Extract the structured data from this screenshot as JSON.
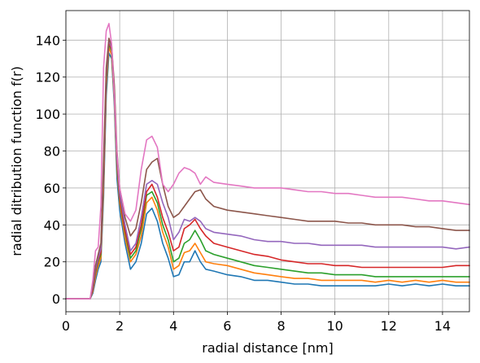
{
  "chart_data": {
    "type": "line",
    "title": "",
    "xlabel": "radial distance [nm]",
    "ylabel": "radial ditribution function f(r)",
    "xlim": [
      0,
      15
    ],
    "ylim": [
      -7,
      156
    ],
    "xticks": [
      0,
      2,
      4,
      6,
      8,
      10,
      12,
      14
    ],
    "yticks": [
      0,
      20,
      40,
      60,
      80,
      100,
      120,
      140
    ],
    "grid": true,
    "legend": "none",
    "series": [
      {
        "color": "#1f77b4",
        "x": [
          0,
          0.9,
          1.0,
          1.1,
          1.2,
          1.3,
          1.4,
          1.5,
          1.6,
          1.7,
          1.8,
          1.9,
          2.0,
          2.2,
          2.4,
          2.6,
          2.8,
          3.0,
          3.2,
          3.4,
          3.6,
          3.8,
          4.0,
          4.2,
          4.4,
          4.6,
          4.8,
          5.0,
          5.2,
          5.5,
          6.0,
          6.5,
          7.0,
          7.5,
          8.0,
          8.5,
          9.0,
          9.5,
          10.0,
          10.5,
          11.0,
          11.5,
          12.0,
          12.5,
          13.0,
          13.5,
          14.0,
          14.5,
          15.0
        ],
        "y": [
          0,
          0,
          3,
          10,
          16,
          20,
          55,
          110,
          133,
          130,
          105,
          65,
          48,
          30,
          16,
          20,
          30,
          46,
          49,
          42,
          30,
          22,
          12,
          13,
          20,
          20,
          26,
          20,
          16,
          15,
          13,
          12,
          10,
          10,
          9,
          8,
          8,
          7,
          7,
          7,
          7,
          7,
          8,
          7,
          8,
          7,
          8,
          7,
          7
        ]
      },
      {
        "color": "#ff7f0e",
        "x": [
          0,
          0.9,
          1.0,
          1.1,
          1.2,
          1.3,
          1.4,
          1.5,
          1.6,
          1.7,
          1.8,
          1.9,
          2.0,
          2.2,
          2.4,
          2.6,
          2.8,
          3.0,
          3.2,
          3.4,
          3.6,
          3.8,
          4.0,
          4.2,
          4.4,
          4.6,
          4.8,
          5.0,
          5.2,
          5.5,
          6.0,
          6.5,
          7.0,
          7.5,
          8.0,
          8.5,
          9.0,
          9.5,
          10.0,
          10.5,
          11.0,
          11.5,
          12.0,
          12.5,
          13.0,
          13.5,
          14.0,
          14.5,
          15.0
        ],
        "y": [
          0,
          0,
          4,
          12,
          18,
          22,
          60,
          115,
          136,
          132,
          108,
          70,
          52,
          33,
          20,
          24,
          34,
          52,
          55,
          48,
          36,
          28,
          16,
          18,
          25,
          26,
          30,
          25,
          20,
          19,
          18,
          16,
          14,
          13,
          12,
          11,
          11,
          10,
          10,
          10,
          10,
          9,
          10,
          9,
          10,
          9,
          10,
          9,
          9
        ]
      },
      {
        "color": "#2ca02c",
        "x": [
          0,
          0.9,
          1.0,
          1.1,
          1.2,
          1.3,
          1.4,
          1.5,
          1.6,
          1.7,
          1.8,
          1.9,
          2.0,
          2.2,
          2.4,
          2.6,
          2.8,
          3.0,
          3.2,
          3.4,
          3.6,
          3.8,
          4.0,
          4.2,
          4.4,
          4.6,
          4.8,
          5.0,
          5.2,
          5.5,
          6.0,
          6.5,
          7.0,
          7.5,
          8.0,
          8.5,
          9.0,
          9.5,
          10.0,
          10.5,
          11.0,
          11.5,
          12.0,
          12.5,
          13.0,
          13.5,
          14.0,
          14.5,
          15.0
        ],
        "y": [
          0,
          0,
          5,
          14,
          20,
          24,
          65,
          118,
          138,
          134,
          110,
          72,
          54,
          36,
          22,
          26,
          38,
          56,
          58,
          52,
          40,
          32,
          20,
          22,
          30,
          32,
          37,
          32,
          26,
          24,
          22,
          20,
          18,
          17,
          16,
          15,
          14,
          14,
          13,
          13,
          13,
          12,
          12,
          12,
          12,
          12,
          12,
          12,
          12
        ]
      },
      {
        "color": "#d62728",
        "x": [
          0,
          0.9,
          1.0,
          1.1,
          1.2,
          1.3,
          1.4,
          1.5,
          1.6,
          1.7,
          1.8,
          1.9,
          2.0,
          2.2,
          2.4,
          2.6,
          2.8,
          3.0,
          3.2,
          3.4,
          3.6,
          3.8,
          4.0,
          4.2,
          4.4,
          4.6,
          4.8,
          5.0,
          5.2,
          5.5,
          6.0,
          6.5,
          7.0,
          7.5,
          8.0,
          8.5,
          9.0,
          9.5,
          10.0,
          10.5,
          11.0,
          11.5,
          12.0,
          12.5,
          13.0,
          13.5,
          14.0,
          14.5,
          15.0
        ],
        "y": [
          0,
          0,
          5,
          15,
          21,
          25,
          68,
          120,
          139,
          135,
          112,
          74,
          55,
          37,
          24,
          28,
          40,
          58,
          62,
          55,
          44,
          36,
          26,
          28,
          38,
          40,
          43,
          38,
          34,
          30,
          28,
          26,
          24,
          23,
          21,
          20,
          19,
          19,
          18,
          18,
          17,
          17,
          17,
          17,
          17,
          17,
          17,
          18,
          18
        ]
      },
      {
        "color": "#9467bd",
        "x": [
          0,
          0.9,
          1.0,
          1.1,
          1.2,
          1.3,
          1.4,
          1.5,
          1.6,
          1.7,
          1.8,
          1.9,
          2.0,
          2.2,
          2.4,
          2.6,
          2.8,
          3.0,
          3.2,
          3.4,
          3.6,
          3.8,
          4.0,
          4.2,
          4.4,
          4.6,
          4.8,
          5.0,
          5.2,
          5.5,
          6.0,
          6.5,
          7.0,
          7.5,
          8.0,
          8.5,
          9.0,
          9.5,
          10.0,
          10.5,
          11.0,
          11.5,
          12.0,
          12.5,
          13.0,
          13.5,
          14.0,
          14.5,
          15.0
        ],
        "y": [
          0,
          0,
          6,
          16,
          22,
          27,
          70,
          122,
          140,
          136,
          114,
          76,
          57,
          40,
          26,
          30,
          44,
          62,
          64,
          62,
          52,
          44,
          32,
          36,
          43,
          42,
          44,
          42,
          38,
          36,
          35,
          34,
          32,
          31,
          31,
          30,
          30,
          29,
          29,
          29,
          29,
          28,
          28,
          28,
          28,
          28,
          28,
          27,
          28
        ]
      },
      {
        "color": "#8c564b",
        "x": [
          0,
          0.9,
          1.0,
          1.1,
          1.2,
          1.3,
          1.4,
          1.5,
          1.6,
          1.7,
          1.8,
          1.9,
          2.0,
          2.2,
          2.4,
          2.6,
          2.8,
          3.0,
          3.2,
          3.4,
          3.6,
          3.8,
          4.0,
          4.2,
          4.4,
          4.6,
          4.8,
          5.0,
          5.2,
          5.5,
          6.0,
          6.5,
          7.0,
          7.5,
          8.0,
          8.5,
          9.0,
          9.5,
          10.0,
          10.5,
          11.0,
          11.5,
          12.0,
          12.5,
          13.0,
          13.5,
          14.0,
          14.5,
          15.0
        ],
        "y": [
          0,
          0,
          7,
          18,
          24,
          30,
          75,
          125,
          141,
          137,
          116,
          80,
          60,
          44,
          34,
          38,
          52,
          70,
          74,
          76,
          62,
          50,
          44,
          46,
          50,
          54,
          58,
          59,
          54,
          50,
          48,
          47,
          46,
          45,
          44,
          43,
          42,
          42,
          42,
          41,
          41,
          40,
          40,
          40,
          39,
          39,
          38,
          37,
          37
        ]
      },
      {
        "color": "#e377c2",
        "x": [
          0,
          0.9,
          1.0,
          1.1,
          1.2,
          1.3,
          1.4,
          1.5,
          1.6,
          1.7,
          1.8,
          1.9,
          2.0,
          2.2,
          2.4,
          2.6,
          2.8,
          3.0,
          3.2,
          3.4,
          3.6,
          3.8,
          4.0,
          4.2,
          4.4,
          4.6,
          4.8,
          5.0,
          5.2,
          5.5,
          6.0,
          6.5,
          7.0,
          7.5,
          8.0,
          8.5,
          9.0,
          9.5,
          10.0,
          10.5,
          11.0,
          11.5,
          12.0,
          12.5,
          13.0,
          13.5,
          14.0,
          14.5,
          15.0
        ],
        "y": [
          0,
          0,
          10,
          26,
          28,
          50,
          125,
          145,
          149,
          138,
          110,
          78,
          60,
          46,
          42,
          48,
          70,
          86,
          88,
          82,
          62,
          58,
          62,
          68,
          71,
          70,
          68,
          62,
          66,
          63,
          62,
          61,
          60,
          60,
          60,
          59,
          58,
          58,
          57,
          57,
          56,
          55,
          55,
          55,
          54,
          53,
          53,
          52,
          51
        ]
      }
    ]
  }
}
